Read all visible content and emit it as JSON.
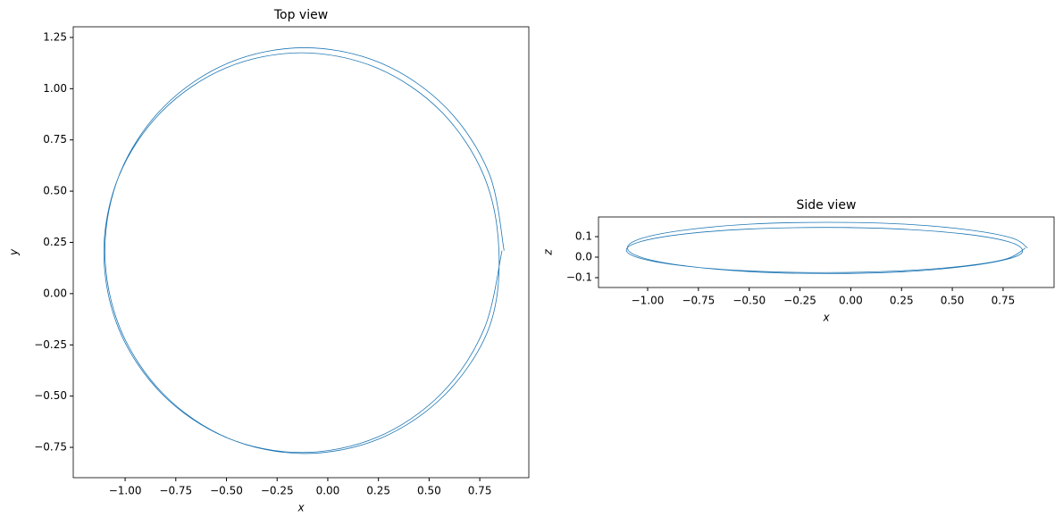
{
  "chart_data": [
    {
      "type": "line",
      "title": "Top view",
      "xlabel": "x",
      "ylabel": "y",
      "grid": false,
      "xlim": [
        -1.256,
        0.992
      ],
      "ylim": [
        -0.898,
        1.302
      ],
      "xticks": [
        {
          "value": -1,
          "label": "−1.00"
        },
        {
          "value": -0.75,
          "label": "−0.75"
        },
        {
          "value": -0.5,
          "label": "−0.50"
        },
        {
          "value": -0.25,
          "label": "−0.25"
        },
        {
          "value": 0,
          "label": "0.00"
        },
        {
          "value": 0.25,
          "label": "0.25"
        },
        {
          "value": 0.5,
          "label": "0.50"
        },
        {
          "value": 0.75,
          "label": "0.75"
        }
      ],
      "yticks": [
        {
          "value": -0.75,
          "label": "−0.75"
        },
        {
          "value": -0.5,
          "label": "−0.50"
        },
        {
          "value": -0.25,
          "label": "−0.25"
        },
        {
          "value": 0,
          "label": "0.00"
        },
        {
          "value": 0.25,
          "label": "0.25"
        },
        {
          "value": 0.5,
          "label": "0.50"
        },
        {
          "value": 0.75,
          "label": "0.75"
        },
        {
          "value": 1,
          "label": "1.00"
        },
        {
          "value": 1.25,
          "label": "1.25"
        }
      ],
      "series": [
        {
          "color": "#1f77b4",
          "x": [
            0.87,
            0.795,
            0.581,
            0.262,
            -0.115,
            -0.492,
            -0.811,
            -1.025,
            -1.1,
            -1.025,
            -0.811,
            -0.492,
            -0.115,
            0.262,
            0.581,
            0.795,
            0.845,
            0.771,
            0.559,
            0.243,
            -0.13,
            -0.503,
            -0.819,
            -1.031,
            -1.105,
            -1.031,
            -0.819,
            -0.503,
            -0.13,
            0.243,
            0.559,
            0.771,
            0.86
          ],
          "values": [
            0.21,
            0.589,
            0.91,
            1.125,
            1.2,
            1.125,
            0.91,
            0.589,
            0.21,
            -0.169,
            -0.49,
            -0.705,
            -0.78,
            -0.705,
            -0.49,
            -0.169,
            0.2,
            0.573,
            0.889,
            1.101,
            1.175,
            1.101,
            0.889,
            0.573,
            0.2,
            -0.173,
            -0.489,
            -0.701,
            -0.775,
            -0.701,
            -0.489,
            -0.173,
            0.21
          ]
        }
      ]
    },
    {
      "type": "line",
      "title": "Side view",
      "xlabel": "x",
      "ylabel": "z",
      "grid": false,
      "xlim": [
        -1.242,
        1.001
      ],
      "ylim": [
        -0.148,
        0.196
      ],
      "xticks": [
        {
          "value": -1,
          "label": "−1.00"
        },
        {
          "value": -0.75,
          "label": "−0.75"
        },
        {
          "value": -0.5,
          "label": "−0.50"
        },
        {
          "value": -0.25,
          "label": "−0.25"
        },
        {
          "value": 0,
          "label": "0.00"
        },
        {
          "value": 0.25,
          "label": "0.25"
        },
        {
          "value": 0.5,
          "label": "0.50"
        },
        {
          "value": 0.75,
          "label": "0.75"
        }
      ],
      "yticks": [
        {
          "value": -0.1,
          "label": "−0.1"
        },
        {
          "value": 0,
          "label": "0.0"
        },
        0.1
      ],
      "series": [
        {
          "color": "#1f77b4",
          "x": [
            0.87,
            0.795,
            0.581,
            0.262,
            -0.115,
            -0.492,
            -0.811,
            -1.025,
            -1.1,
            -1.025,
            -0.811,
            -0.492,
            -0.115,
            0.262,
            0.581,
            0.795,
            0.845,
            0.771,
            0.559,
            0.243,
            -0.13,
            -0.503,
            -0.819,
            -1.031,
            -1.105,
            -1.031,
            -0.819,
            -0.503,
            -0.13,
            0.243,
            0.559,
            0.771,
            0.86
          ],
          "values": [
            0.045,
            0.093,
            0.133,
            0.161,
            0.17,
            0.161,
            0.133,
            0.093,
            0.045,
            -0.003,
            -0.043,
            -0.071,
            -0.08,
            -0.071,
            -0.043,
            -0.003,
            0.035,
            0.077,
            0.113,
            0.137,
            0.145,
            0.137,
            0.113,
            0.077,
            0.035,
            -0.007,
            -0.043,
            -0.067,
            -0.075,
            -0.067,
            -0.043,
            -0.007,
            0.045
          ]
        }
      ]
    }
  ]
}
